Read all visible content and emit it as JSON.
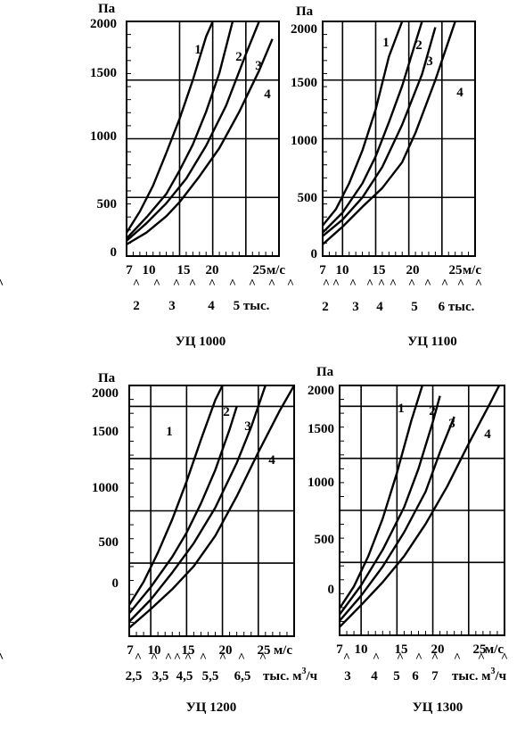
{
  "chart_data": [
    {
      "type": "line",
      "title": "УЦ 1000",
      "ylabel": "Па",
      "xlabel": "м/с",
      "ylim": [
        0,
        2000
      ],
      "y_ticks": [
        "0",
        "500",
        "1000",
        "1500",
        "2000"
      ],
      "x_ticks": [
        "7",
        "10",
        "15",
        "20",
        "25"
      ],
      "flow_ticks": [
        "2",
        "3",
        "4",
        "5 тыс."
      ],
      "carets": [
        "^",
        "^",
        "^",
        "^",
        "^",
        "^",
        "^",
        "^",
        "^"
      ],
      "curve_labels": [
        "1",
        "2",
        "3",
        "4"
      ],
      "series": [
        {
          "name": "1",
          "x": [
            7,
            9,
            11,
            13,
            15,
            17,
            19,
            20
          ],
          "y": [
            200,
            380,
            600,
            880,
            1170,
            1500,
            1870,
            2000
          ]
        },
        {
          "name": "2",
          "x": [
            7,
            10,
            13,
            15,
            17,
            19,
            21,
            23
          ],
          "y": [
            150,
            330,
            530,
            730,
            950,
            1230,
            1560,
            2000
          ]
        },
        {
          "name": "3",
          "x": [
            7,
            10,
            13,
            16,
            19,
            22,
            25,
            27
          ],
          "y": [
            130,
            280,
            450,
            660,
            940,
            1280,
            1720,
            2000
          ]
        },
        {
          "name": "4",
          "x": [
            7,
            10,
            13,
            15,
            18,
            21,
            24,
            27,
            29
          ],
          "y": [
            100,
            200,
            340,
            460,
            680,
            920,
            1230,
            1580,
            1850
          ]
        }
      ]
    },
    {
      "type": "line",
      "title": "УЦ 1100",
      "ylabel": "Па",
      "xlabel": "м/с",
      "ylim": [
        0,
        2000
      ],
      "y_ticks": [
        "0",
        "500",
        "1000",
        "1500",
        "2000"
      ],
      "x_ticks": [
        "7",
        "10",
        "15",
        "20",
        "25"
      ],
      "flow_ticks": [
        "2",
        "3",
        "4",
        "5",
        "6 тыс."
      ],
      "carets": [
        "^",
        "^",
        "^",
        "^",
        "^",
        "^",
        "^",
        "^",
        "^",
        "^",
        "^",
        "^",
        "^"
      ],
      "curve_labels": [
        "1",
        "2",
        "3",
        "4"
      ],
      "series": [
        {
          "name": "1",
          "x": [
            7,
            9,
            11,
            13,
            15,
            17,
            19
          ],
          "y": [
            260,
            400,
            620,
            900,
            1250,
            1700,
            2000
          ]
        },
        {
          "name": "2",
          "x": [
            7,
            10,
            13,
            15,
            17,
            19,
            21,
            22
          ],
          "y": [
            200,
            370,
            620,
            850,
            1140,
            1450,
            1820,
            2000
          ]
        },
        {
          "name": "3",
          "x": [
            7,
            10,
            13,
            16,
            19,
            22,
            24
          ],
          "y": [
            170,
            310,
            500,
            760,
            1120,
            1550,
            1950
          ]
        },
        {
          "name": "4",
          "x": [
            7,
            10,
            13,
            16,
            19,
            21,
            24,
            27
          ],
          "y": [
            100,
            250,
            420,
            580,
            800,
            1050,
            1500,
            2000
          ]
        }
      ]
    },
    {
      "type": "line",
      "title": "УЦ 1200",
      "ylabel": "Па",
      "xlabel": "м/с",
      "ylim": [
        0,
        2000
      ],
      "y_ticks": [
        "0",
        "500",
        "1000",
        "1500",
        "2000"
      ],
      "x_ticks": [
        "7",
        "10",
        "15",
        "20",
        "25"
      ],
      "flow_ticks": [
        "2,5",
        "3,5",
        "4,5",
        "5,5",
        "6,5",
        "тыс. м",
        "/ч"
      ],
      "flow_sup": "3",
      "carets": [
        "^",
        "^",
        "^",
        "^",
        "^",
        "^",
        "^",
        "^",
        "^",
        "^",
        "^",
        "^"
      ],
      "curve_labels": [
        "1",
        "2",
        "3",
        "4"
      ],
      "series": [
        {
          "name": "1",
          "x": [
            7,
            9,
            11,
            13,
            15,
            17,
            19,
            20
          ],
          "y": [
            100,
            320,
            600,
            920,
            1280,
            1680,
            2060,
            2200
          ]
        },
        {
          "name": "2",
          "x": [
            7,
            10,
            13,
            15,
            17,
            19,
            21,
            22
          ],
          "y": [
            20,
            270,
            560,
            790,
            1070,
            1390,
            1780,
            2000
          ]
        },
        {
          "name": "3",
          "x": [
            7,
            10,
            13,
            16,
            19,
            22,
            24,
            26
          ],
          "y": [
            -60,
            150,
            410,
            690,
            1030,
            1460,
            1800,
            2200
          ]
        },
        {
          "name": "4",
          "x": [
            7,
            10,
            13,
            16,
            19,
            22,
            25,
            28,
            30
          ],
          "y": [
            -120,
            60,
            250,
            470,
            760,
            1140,
            1560,
            1960,
            2200
          ]
        }
      ]
    },
    {
      "type": "line",
      "title": "УЦ 1300",
      "ylabel": "Па",
      "xlabel": "м/с",
      "ylim": [
        0,
        2000
      ],
      "y_ticks": [
        "0",
        "500",
        "1000",
        "1500",
        "2000"
      ],
      "x_ticks": [
        "7",
        "10",
        "15",
        "20",
        "25"
      ],
      "flow_ticks": [
        "3",
        "4",
        "5",
        "6",
        "7",
        "тыс. м",
        "/ч"
      ],
      "flow_sup": "3",
      "carets": [
        "^",
        "^",
        "^",
        "^",
        "^",
        "^",
        "^",
        "^"
      ],
      "curve_labels": [
        "1",
        "2",
        "3",
        "4"
      ],
      "series": [
        {
          "name": "1",
          "x": [
            7,
            9,
            11,
            13,
            15,
            17,
            19
          ],
          "y": [
            60,
            270,
            560,
            920,
            1360,
            1860,
            2300
          ]
        },
        {
          "name": "2",
          "x": [
            7,
            10,
            13,
            16,
            18,
            20,
            21
          ],
          "y": [
            0,
            280,
            620,
            1030,
            1400,
            1850,
            2100
          ]
        },
        {
          "name": "3",
          "x": [
            7,
            10,
            13,
            16,
            19,
            21,
            23
          ],
          "y": [
            -60,
            180,
            460,
            790,
            1180,
            1560,
            1900
          ]
        },
        {
          "name": "4",
          "x": [
            7,
            10,
            13,
            16,
            19,
            22,
            25,
            28,
            30
          ],
          "y": [
            -120,
            90,
            310,
            560,
            870,
            1230,
            1640,
            2030,
            2300
          ]
        }
      ]
    }
  ]
}
